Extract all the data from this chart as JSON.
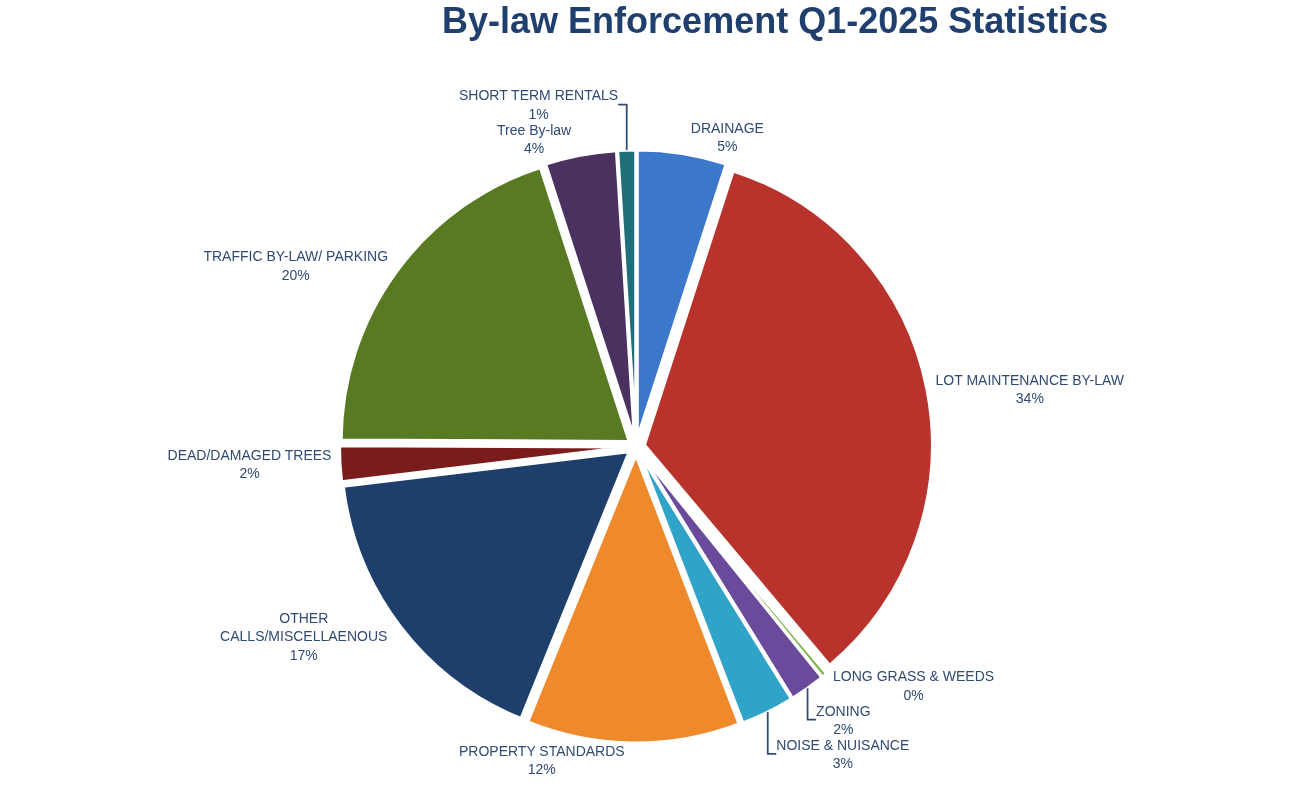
{
  "chart_data": {
    "type": "pie",
    "title": "By-law Enforcement Q1-2025 Statistics",
    "categories": [
      "DRAINAGE",
      "LOT MAINTENANCE BY-LAW",
      "LONG GRASS & WEEDS",
      "ZONING",
      "NOISE & NUISANCE",
      "PROPERTY STANDARDS",
      "OTHER CALLS/MISCELLAENOUS",
      "DEAD/DAMAGED TREES",
      "TRAFFIC BY-LAW/ PARKING",
      "Tree By-law",
      "SHORT TERM RENTALS"
    ],
    "values": [
      5,
      34,
      0.3,
      2,
      3,
      12,
      17,
      2,
      20,
      4,
      1
    ],
    "value_labels": [
      "5%",
      "34%",
      "0%",
      "2%",
      "3%",
      "12%",
      "17%",
      "2%",
      "20%",
      "4%",
      "1%"
    ],
    "colors": [
      "#3b78c9",
      "#b8332c",
      "#7ab648",
      "#6a4a9a",
      "#2fa4c8",
      "#ee8a2c",
      "#1e3f6c",
      "#7a1c1c",
      "#587a23",
      "#4a3160",
      "#1f6f7a"
    ],
    "legend": false
  }
}
